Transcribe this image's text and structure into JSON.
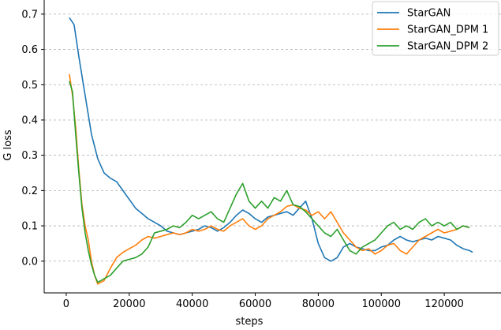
{
  "chart_data": {
    "type": "line",
    "title": "",
    "xlabel": "steps",
    "ylabel": "G loss",
    "xlim": [
      -7000,
      138000
    ],
    "ylim": [
      -0.09,
      0.74
    ],
    "xticks": [
      0,
      20000,
      40000,
      60000,
      80000,
      100000,
      120000
    ],
    "xtick_labels": [
      "0",
      "20000",
      "40000",
      "60000",
      "80000",
      "100000",
      "120000"
    ],
    "yticks": [
      0.0,
      0.1,
      0.2,
      0.3,
      0.4,
      0.5,
      0.6,
      0.7
    ],
    "ytick_labels": [
      "0.0",
      "0.1",
      "0.2",
      "0.3",
      "0.4",
      "0.5",
      "0.6",
      "0.7"
    ],
    "grid": "horizontal dashed",
    "legend_position": "top-right",
    "series": [
      {
        "name": "StarGAN",
        "color": "#1f77b4",
        "x": [
          1000,
          2500,
          4000,
          6000,
          8000,
          10000,
          12000,
          14000,
          16000,
          18000,
          20000,
          22000,
          24000,
          26000,
          28000,
          30000,
          32000,
          34000,
          36000,
          38000,
          40000,
          42000,
          44000,
          46000,
          48000,
          50000,
          52000,
          54000,
          56000,
          58000,
          60000,
          62000,
          64000,
          66000,
          68000,
          70000,
          72000,
          74000,
          76000,
          78000,
          80000,
          82000,
          84000,
          86000,
          88000,
          90000,
          92000,
          94000,
          96000,
          98000,
          100000,
          102000,
          104000,
          106000,
          108000,
          110000,
          112000,
          114000,
          116000,
          118000,
          120000,
          122000,
          124000,
          126000,
          128000,
          129000
        ],
        "y": [
          0.69,
          0.67,
          0.58,
          0.47,
          0.36,
          0.29,
          0.25,
          0.235,
          0.225,
          0.2,
          0.175,
          0.15,
          0.135,
          0.12,
          0.11,
          0.1,
          0.085,
          0.08,
          0.075,
          0.08,
          0.085,
          0.09,
          0.1,
          0.095,
          0.085,
          0.095,
          0.11,
          0.13,
          0.145,
          0.135,
          0.12,
          0.11,
          0.125,
          0.13,
          0.135,
          0.14,
          0.13,
          0.15,
          0.17,
          0.12,
          0.05,
          0.01,
          0.0,
          0.01,
          0.04,
          0.05,
          0.04,
          0.035,
          0.03,
          0.03,
          0.04,
          0.045,
          0.06,
          0.07,
          0.06,
          0.055,
          0.06,
          0.065,
          0.06,
          0.07,
          0.065,
          0.06,
          0.045,
          0.035,
          0.03,
          0.025
        ]
      },
      {
        "name": "StarGAN_DPM 1",
        "color": "#ff7f0e",
        "x": [
          1000,
          2000,
          3000,
          4000,
          5000,
          6000,
          7000,
          8000,
          9000,
          10000,
          12000,
          14000,
          16000,
          18000,
          20000,
          22000,
          24000,
          26000,
          28000,
          30000,
          32000,
          34000,
          36000,
          38000,
          40000,
          42000,
          44000,
          46000,
          48000,
          50000,
          52000,
          54000,
          56000,
          58000,
          60000,
          62000,
          64000,
          66000,
          68000,
          70000,
          72000,
          74000,
          76000,
          78000,
          80000,
          82000,
          84000,
          86000,
          88000,
          90000,
          92000,
          94000,
          96000,
          98000,
          100000,
          102000,
          104000,
          106000,
          108000,
          110000,
          112000,
          114000,
          116000,
          118000,
          120000,
          122000,
          124000,
          126000,
          128000
        ],
        "y": [
          0.53,
          0.47,
          0.38,
          0.26,
          0.16,
          0.1,
          0.06,
          0.0,
          -0.04,
          -0.065,
          -0.055,
          -0.02,
          0.01,
          0.025,
          0.035,
          0.045,
          0.06,
          0.07,
          0.065,
          0.07,
          0.075,
          0.08,
          0.075,
          0.08,
          0.09,
          0.085,
          0.09,
          0.1,
          0.09,
          0.085,
          0.1,
          0.11,
          0.12,
          0.1,
          0.09,
          0.1,
          0.12,
          0.13,
          0.14,
          0.155,
          0.16,
          0.15,
          0.145,
          0.13,
          0.14,
          0.12,
          0.14,
          0.11,
          0.08,
          0.06,
          0.04,
          0.03,
          0.035,
          0.02,
          0.03,
          0.045,
          0.05,
          0.03,
          0.02,
          0.04,
          0.06,
          0.07,
          0.08,
          0.09,
          0.08,
          0.085,
          0.09,
          0.1,
          0.095
        ]
      },
      {
        "name": "StarGAN_DPM 2",
        "color": "#2ca02c",
        "x": [
          1000,
          2000,
          3000,
          4000,
          5000,
          6000,
          7000,
          8000,
          9000,
          10000,
          12000,
          14000,
          16000,
          18000,
          20000,
          22000,
          24000,
          26000,
          28000,
          30000,
          32000,
          34000,
          36000,
          38000,
          40000,
          42000,
          44000,
          46000,
          48000,
          50000,
          52000,
          54000,
          56000,
          58000,
          60000,
          62000,
          64000,
          66000,
          68000,
          70000,
          72000,
          74000,
          76000,
          78000,
          80000,
          82000,
          84000,
          86000,
          88000,
          90000,
          92000,
          94000,
          96000,
          98000,
          100000,
          102000,
          104000,
          106000,
          108000,
          110000,
          112000,
          114000,
          116000,
          118000,
          120000,
          122000,
          124000,
          126000,
          128000
        ],
        "y": [
          0.51,
          0.48,
          0.36,
          0.25,
          0.15,
          0.08,
          0.03,
          -0.01,
          -0.04,
          -0.06,
          -0.05,
          -0.04,
          -0.02,
          0.0,
          0.005,
          0.01,
          0.02,
          0.04,
          0.08,
          0.085,
          0.09,
          0.1,
          0.095,
          0.11,
          0.13,
          0.12,
          0.13,
          0.14,
          0.12,
          0.11,
          0.15,
          0.19,
          0.22,
          0.17,
          0.15,
          0.17,
          0.15,
          0.18,
          0.17,
          0.2,
          0.16,
          0.155,
          0.14,
          0.12,
          0.1,
          0.08,
          0.07,
          0.09,
          0.06,
          0.03,
          0.02,
          0.04,
          0.05,
          0.06,
          0.08,
          0.1,
          0.11,
          0.09,
          0.1,
          0.09,
          0.11,
          0.12,
          0.1,
          0.11,
          0.1,
          0.11,
          0.09,
          0.1,
          0.095
        ]
      }
    ]
  }
}
